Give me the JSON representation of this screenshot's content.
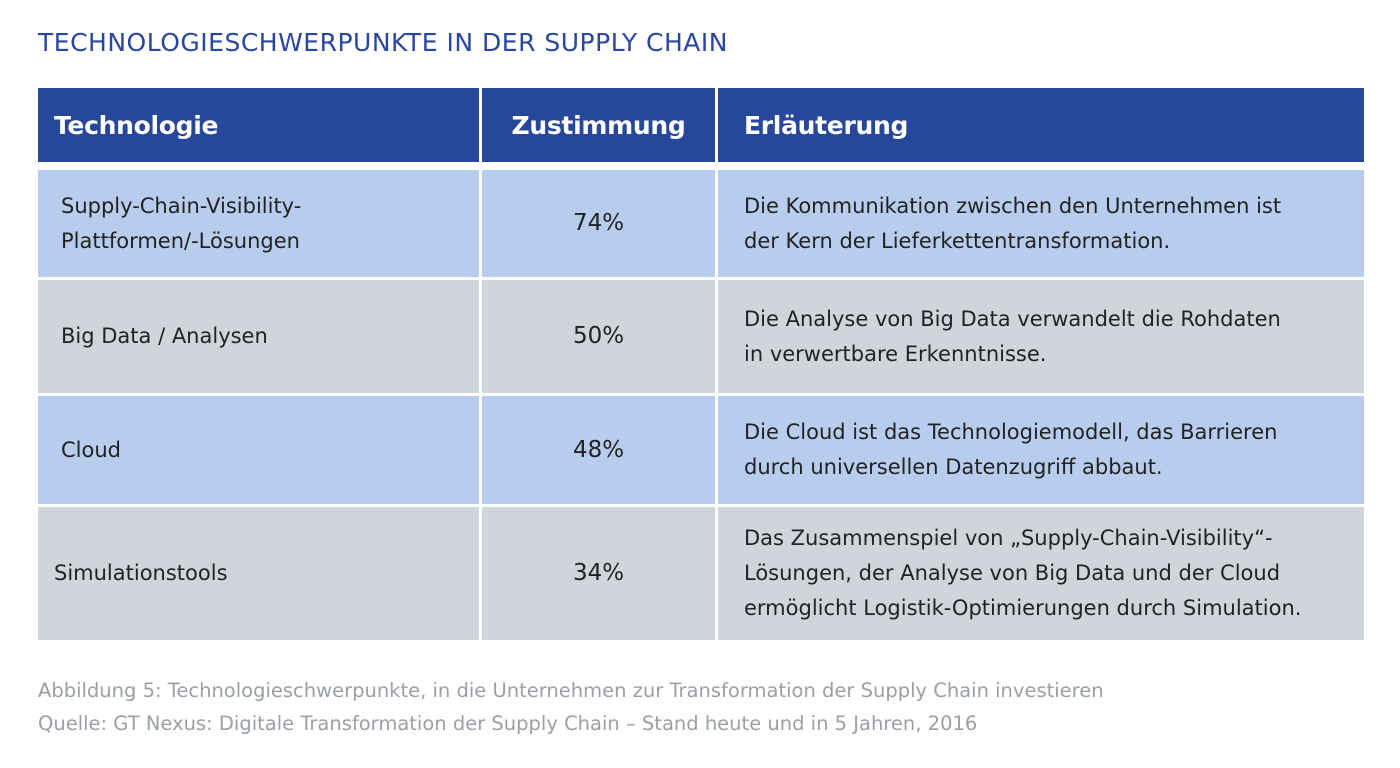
{
  "title": "TECHNOLOGIESCHWERPUNKTE IN DER SUPPLY CHAIN",
  "table": {
    "headers": [
      "Technologie",
      "Zustimmung",
      "Erläuterung"
    ],
    "rows": [
      {
        "technologie": "Supply-Chain-Visibility-\nPlattformen/-Lösungen",
        "zustimmung": "74%",
        "erlaeuterung": "Die Kommunikation zwischen den Unternehmen ist\nder Kern der Lieferkettentransformation."
      },
      {
        "technologie": "Big Data / Analysen",
        "zustimmung": "50%",
        "erlaeuterung": "Die Analyse von Big Data verwandelt die Rohdaten\nin verwertbare Erkenntnisse."
      },
      {
        "technologie": "Cloud",
        "zustimmung": "48%",
        "erlaeuterung": "Die Cloud ist das Technologiemodell, das Barrieren\ndurch universellen Datenzugriff abbaut."
      },
      {
        "technologie": "Simulationstools",
        "zustimmung": "34%",
        "erlaeuterung": "Das Zusammenspiel von „Supply-Chain-Visibility“-\nLösungen, der Analyse von Big Data und der Cloud\nermöglicht Logistik-Optimierungen durch Simulation."
      }
    ]
  },
  "caption": {
    "figure": "Abbildung 5: Technologieschwerpunkte, in die Unternehmen zur Transformation der Supply Chain investieren",
    "source": "Quelle: GT Nexus: Digitale Transformation der Supply Chain – Stand heute und in 5 Jahren, 2016"
  },
  "colors": {
    "title": "#2a46a0",
    "header_bg": "#27479a",
    "row_blue": "#b8cdee",
    "row_grey": "#d0d5dc",
    "caption": "#9aa0a6"
  }
}
